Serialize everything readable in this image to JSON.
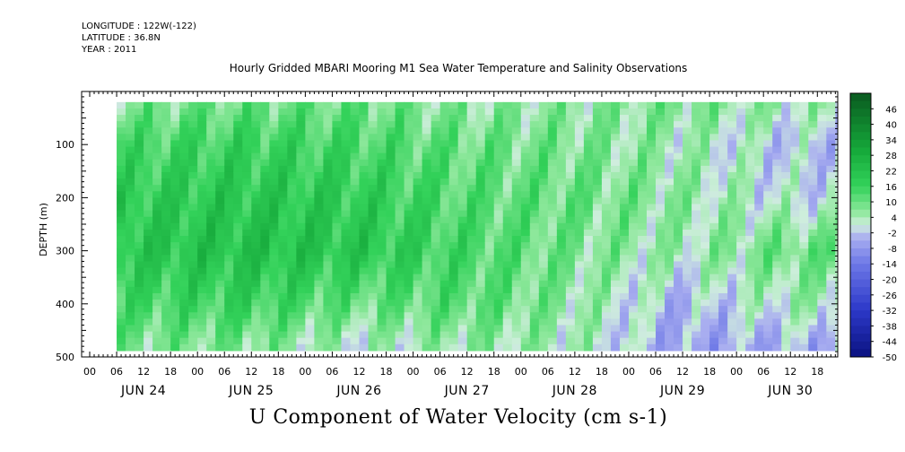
{
  "header": {
    "longitude": "LONGITUDE : 122W(-122)",
    "latitude": "LATITUDE : 36.8N",
    "year": "YEAR : 2011"
  },
  "chart_data": {
    "type": "heatmap",
    "title": "Hourly Gridded MBARI Mooring M1 Sea Water Temperature and Salinity Observations",
    "xlabel": "U Component of Water Velocity (cm s-1)",
    "ylabel": "DEPTH (m)",
    "ylim": [
      500,
      0
    ],
    "y_ticks": [
      100,
      200,
      300,
      400,
      500
    ],
    "x_hour_ticks": [
      "00",
      "06",
      "12",
      "18",
      "00",
      "06",
      "12",
      "18",
      "00",
      "06",
      "12",
      "18",
      "00",
      "06",
      "12",
      "18",
      "00",
      "06",
      "12",
      "18",
      "00",
      "06",
      "12",
      "18",
      "00",
      "06",
      "12",
      "18"
    ],
    "x_day_labels": [
      "JUN 24",
      "JUN 25",
      "JUN 26",
      "JUN 27",
      "JUN 28",
      "JUN 29",
      "JUN 30"
    ],
    "colorbar_labels": [
      "46",
      "40",
      "34",
      "28",
      "22",
      "16",
      "10",
      "4",
      "-2",
      "-8",
      "-14",
      "-20",
      "-26",
      "-32",
      "-38",
      "-44",
      "-50"
    ],
    "colorbar_range": [
      -50,
      52
    ],
    "colors": {
      "strong_positive": "#0a8a2a",
      "positive": "#33d25a",
      "weak_positive": "#8ee89c",
      "near_zero": "#cfeedd",
      "weak_negative": "#a9aef0",
      "negative": "#6d78e6",
      "strong_negative": "#0a1280"
    },
    "data_grid": {
      "columns": [
        "JUN 24",
        "JUN 25",
        "JUN 26",
        "JUN 27",
        "JUN 28",
        "JUN 29",
        "JUN 30"
      ],
      "depths_m": [
        25,
        100,
        200,
        300,
        400,
        475
      ],
      "u_cm_s": [
        [
          8,
          10,
          10,
          6,
          6,
          8,
          4
        ],
        [
          14,
          16,
          14,
          10,
          8,
          4,
          -2
        ],
        [
          18,
          20,
          18,
          12,
          10,
          6,
          0
        ],
        [
          20,
          22,
          20,
          14,
          8,
          4,
          10
        ],
        [
          14,
          16,
          10,
          12,
          6,
          -4,
          4
        ],
        [
          8,
          8,
          2,
          6,
          4,
          -6,
          -4
        ]
      ]
    }
  }
}
